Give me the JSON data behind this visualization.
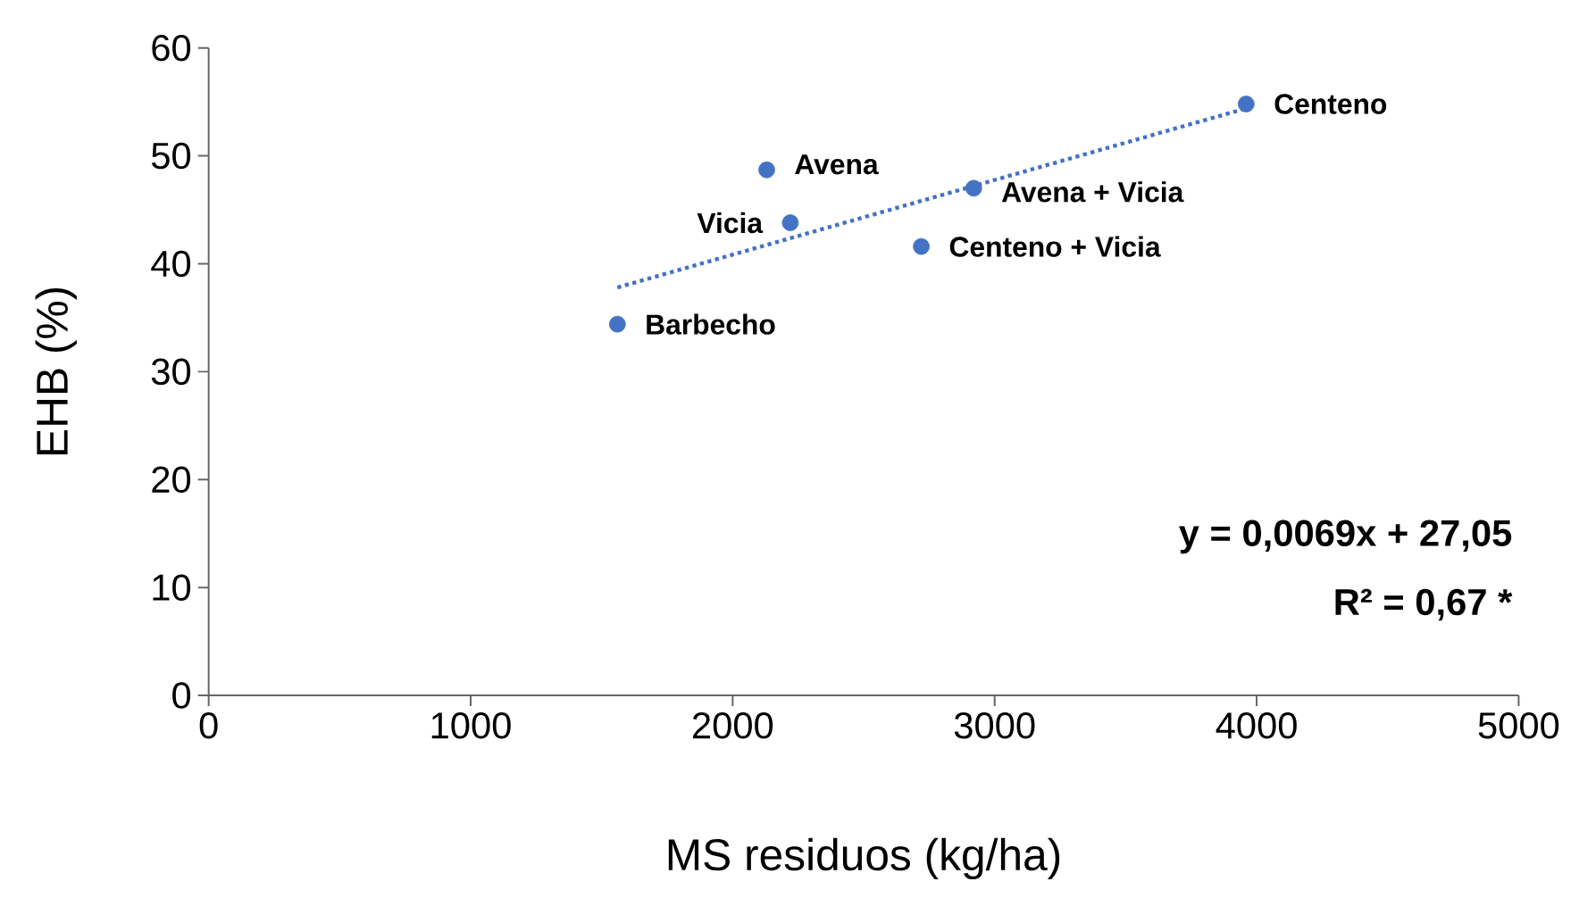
{
  "chart_data": {
    "type": "scatter",
    "xlabel": "MS residuos (kg/ha)",
    "ylabel": "EHB (%)",
    "xlim": [
      0,
      5000
    ],
    "xticks": [
      0,
      1000,
      2000,
      3000,
      4000,
      5000
    ],
    "ylim": [
      0,
      60
    ],
    "yticks": [
      0,
      10,
      20,
      30,
      40,
      50,
      60
    ],
    "series": [
      {
        "color": "#4472c4",
        "marker": "circle",
        "x": [
          1560,
          2130,
          2220,
          2720,
          2920,
          3960
        ],
        "values": [
          34.4,
          48.7,
          43.8,
          41.6,
          47.0,
          54.8
        ]
      },
      {
        "type": "line",
        "color": "#4472c4",
        "marker": "none",
        "line_style": "dotted",
        "x": [
          1560,
          3960
        ],
        "values": [
          37.8,
          54.4
        ]
      }
    ],
    "annotations": [
      {
        "text": "Barbecho",
        "x": 1560,
        "y": 34.4
      },
      {
        "text": "Avena",
        "x": 2130,
        "y": 48.7
      },
      {
        "text": "Vicia",
        "x": 2220,
        "y": 43.8
      },
      {
        "text": "Centeno + Vicia",
        "x": 2720,
        "y": 41.6
      },
      {
        "text": "Avena + Vicia",
        "x": 2920,
        "y": 47.0
      },
      {
        "text": "Centeno",
        "x": 3960,
        "y": 54.8
      },
      "y = 0,0069x + 27,05",
      "R² = 0,67 *"
    ]
  }
}
